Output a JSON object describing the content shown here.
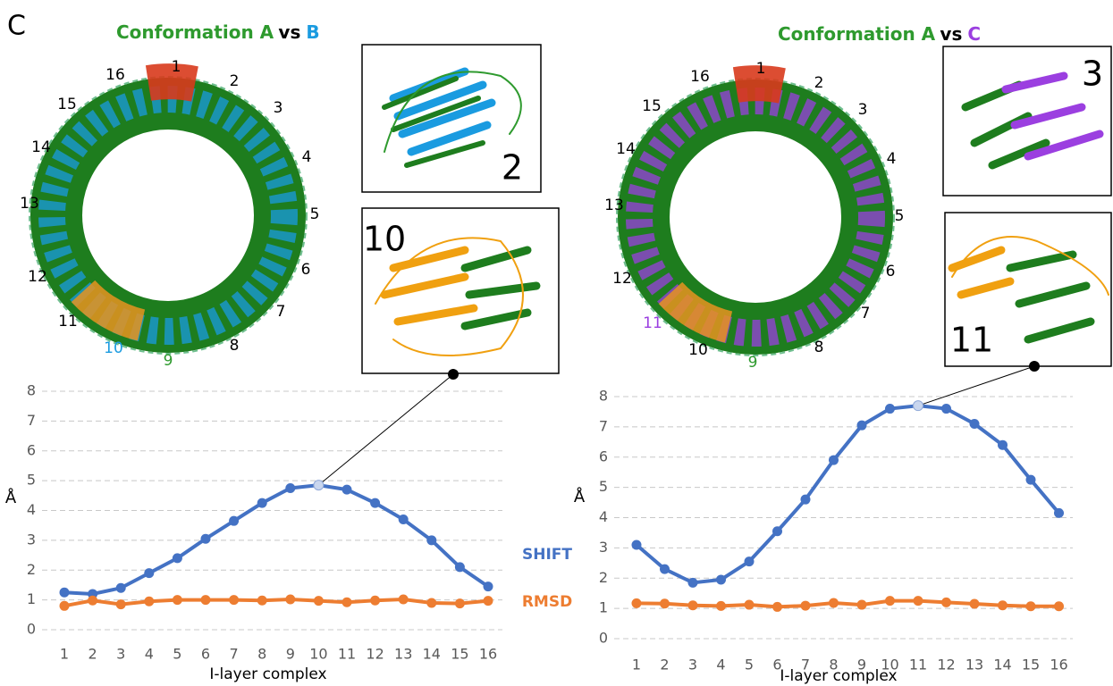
{
  "panel_label": "C",
  "structures": [
    {
      "title_parts": [
        {
          "text": "Conformation A",
          "color": "#2e9a2e"
        },
        {
          "text": "vs",
          "color": "#000000"
        },
        {
          "text": "B",
          "color": "#1a9be0"
        }
      ],
      "ring_labels": [
        {
          "text": "1",
          "color": "#000000"
        },
        {
          "text": "2",
          "color": "#000000"
        },
        {
          "text": "3",
          "color": "#000000"
        },
        {
          "text": "4",
          "color": "#000000"
        },
        {
          "text": "5",
          "color": "#000000"
        },
        {
          "text": "6",
          "color": "#000000"
        },
        {
          "text": "7",
          "color": "#000000"
        },
        {
          "text": "8",
          "color": "#000000"
        },
        {
          "text": "9",
          "color": "#2e9a2e"
        },
        {
          "text": "10",
          "color": "#1a9be0"
        },
        {
          "text": "11",
          "color": "#000000"
        },
        {
          "text": "12",
          "color": "#000000"
        },
        {
          "text": "13",
          "color": "#000000"
        },
        {
          "text": "14",
          "color": "#000000"
        },
        {
          "text": "15",
          "color": "#000000"
        },
        {
          "text": "16",
          "color": "#000000"
        }
      ],
      "ring_color": "#1a9be0",
      "insets": [
        "2",
        "10"
      ]
    },
    {
      "title_parts": [
        {
          "text": "Conformation A",
          "color": "#2e9a2e"
        },
        {
          "text": "vs",
          "color": "#000000"
        },
        {
          "text": "C",
          "color": "#9b3fe0"
        }
      ],
      "ring_labels": [
        {
          "text": "1",
          "color": "#000000"
        },
        {
          "text": "2",
          "color": "#000000"
        },
        {
          "text": "3",
          "color": "#000000"
        },
        {
          "text": "4",
          "color": "#000000"
        },
        {
          "text": "5",
          "color": "#000000"
        },
        {
          "text": "6",
          "color": "#000000"
        },
        {
          "text": "7",
          "color": "#000000"
        },
        {
          "text": "8",
          "color": "#000000"
        },
        {
          "text": "9",
          "color": "#2e9a2e"
        },
        {
          "text": "10",
          "color": "#000000"
        },
        {
          "text": "11",
          "color": "#9b3fe0"
        },
        {
          "text": "12",
          "color": "#000000"
        },
        {
          "text": "13",
          "color": "#000000"
        },
        {
          "text": "14",
          "color": "#000000"
        },
        {
          "text": "15",
          "color": "#000000"
        },
        {
          "text": "16",
          "color": "#000000"
        }
      ],
      "ring_color": "#9b3fe0",
      "insets": [
        "3",
        "11"
      ]
    }
  ],
  "chart_data": [
    {
      "type": "line",
      "ylabel": "Å",
      "xlabel": "I-layer complex",
      "categories": [
        "1",
        "2",
        "3",
        "4",
        "5",
        "6",
        "7",
        "8",
        "9",
        "10",
        "11",
        "12",
        "13",
        "14",
        "15",
        "16"
      ],
      "ylim": [
        0,
        8
      ],
      "yticks": [
        0,
        1,
        2,
        3,
        4,
        5,
        6,
        7,
        8
      ],
      "grid": true,
      "series": [
        {
          "name": "SHIFT",
          "color": "#4472c4",
          "values": [
            1.25,
            1.2,
            1.4,
            1.9,
            2.4,
            3.05,
            3.65,
            4.25,
            4.75,
            4.85,
            4.7,
            4.25,
            3.7,
            3.0,
            2.1,
            1.45
          ]
        },
        {
          "name": "RMSD",
          "color": "#ed7d31",
          "values": [
            0.8,
            0.98,
            0.85,
            0.95,
            1.0,
            1.0,
            1.0,
            0.98,
            1.02,
            0.97,
            0.92,
            0.98,
            1.02,
            0.9,
            0.88,
            0.97
          ]
        }
      ]
    },
    {
      "type": "line",
      "ylabel": "Å",
      "xlabel": "I-layer complex",
      "categories": [
        "1",
        "2",
        "3",
        "4",
        "5",
        "6",
        "7",
        "8",
        "9",
        "10",
        "11",
        "12",
        "13",
        "14",
        "15",
        "16"
      ],
      "ylim": [
        0,
        8
      ],
      "yticks": [
        0,
        1,
        2,
        3,
        4,
        5,
        6,
        7,
        8
      ],
      "grid": true,
      "series": [
        {
          "color": "#4472c4",
          "values": [
            3.1,
            2.3,
            1.85,
            1.95,
            2.55,
            3.55,
            4.6,
            5.9,
            7.05,
            7.6,
            7.7,
            7.6,
            7.1,
            6.4,
            5.25,
            4.15
          ]
        },
        {
          "color": "#ed7d31",
          "values": [
            1.17,
            1.16,
            1.1,
            1.08,
            1.12,
            1.05,
            1.09,
            1.18,
            1.12,
            1.25,
            1.25,
            1.2,
            1.15,
            1.1,
            1.07,
            1.07
          ]
        }
      ]
    }
  ]
}
